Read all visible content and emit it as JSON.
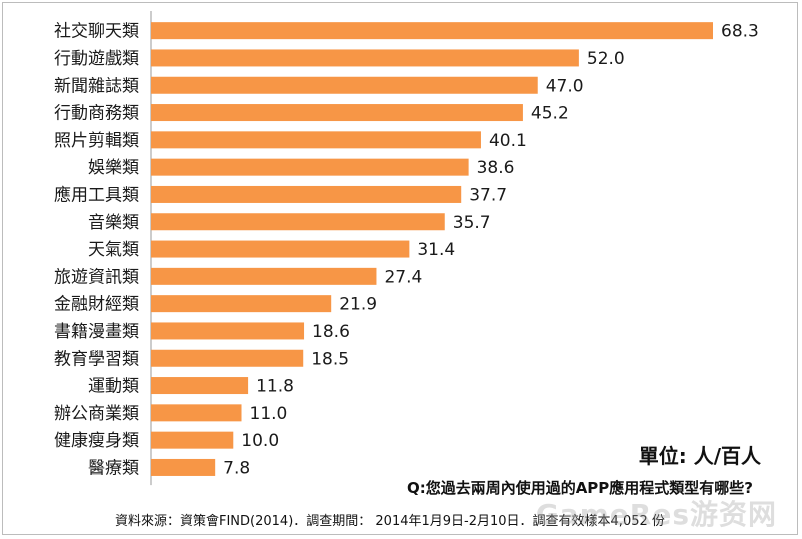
{
  "chart_data": {
    "type": "bar",
    "orientation": "horizontal",
    "categories": [
      "社交聊天類",
      "行動遊戲類",
      "新聞雜誌類",
      "行動商務類",
      "照片剪輯類",
      "娛樂類",
      "應用工具類",
      "音樂類",
      "天氣類",
      "旅遊資訊類",
      "金融財經類",
      "書籍漫畫類",
      "教育學習類",
      "運動類",
      "辦公商業類",
      "健康瘦身類",
      "醫療類"
    ],
    "values": [
      68.3,
      52.0,
      47.0,
      45.2,
      40.1,
      38.6,
      37.7,
      35.7,
      31.4,
      27.4,
      21.9,
      18.6,
      18.5,
      11.8,
      11.0,
      10.0,
      7.8
    ],
    "value_labels": [
      "68.3",
      "52.0",
      "47.0",
      "45.2",
      "40.1",
      "38.6",
      "37.7",
      "35.7",
      "31.4",
      "27.4",
      "21.9",
      "18.6",
      "18.5",
      "11.8",
      "11.0",
      "10.0",
      "7.8"
    ],
    "xlim": [
      0,
      68.3
    ],
    "grid": false,
    "bar_color": "#F79646"
  },
  "unit_text": "單位: 人/百人",
  "question_text": "Q:您過去兩周內使用過的APP應用程式類型有哪些?",
  "source_text": "資料來源：資策會FIND(2014)．調查期間： 2014年1月9日-2月10日．調查有效樣本4,052 份",
  "watermark_text": "GameRes游资网"
}
